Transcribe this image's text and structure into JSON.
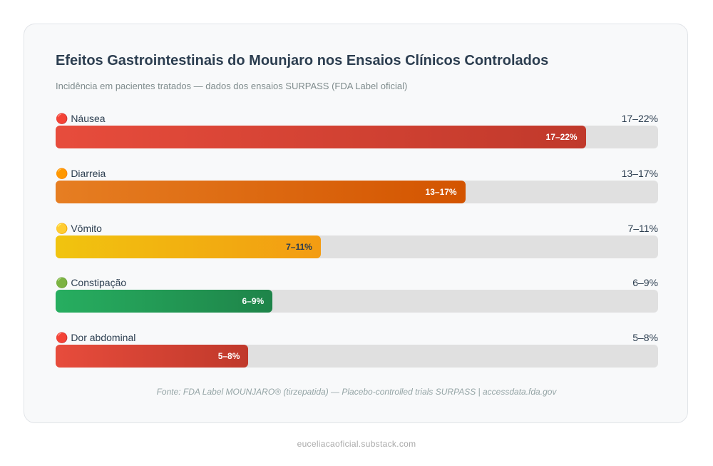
{
  "chart_data": {
    "type": "bar",
    "title": "Efeitos Gastrointestinais do Mounjaro nos Ensaios Clínicos Controlados",
    "subtitle": "Incidência em pacientes tratados — dados dos ensaios SURPASS (FDA Label oficial)",
    "categories": [
      "🔴 Náusea",
      "🟠 Diarreia",
      "🟡 Vômito",
      "🟢 Constipação",
      "🔴 Dor abdominal"
    ],
    "values": [
      22,
      17,
      11,
      9,
      8
    ],
    "value_labels": [
      "17–22%",
      "13–17%",
      "7–11%",
      "6–9%",
      "5–8%"
    ],
    "colors": [
      [
        "#e74c3c",
        "#c0392b"
      ],
      [
        "#e67e22",
        "#d35400"
      ],
      [
        "#f1c40f",
        "#f39c12"
      ],
      [
        "#27ae60",
        "#1e8449"
      ],
      [
        "#e74c3c",
        "#c0392b"
      ]
    ],
    "label_colors": [
      "#ffffff",
      "#ffffff",
      "#2c3e50",
      "#ffffff",
      "#ffffff"
    ],
    "xlim": [
      0,
      25
    ],
    "source": "Fonte: FDA Label MOUNJARO® (tirzepatida) — Placebo-controlled trials SURPASS | accessdata.fda.gov"
  },
  "footer": "euceliacaoficial.substack.com"
}
